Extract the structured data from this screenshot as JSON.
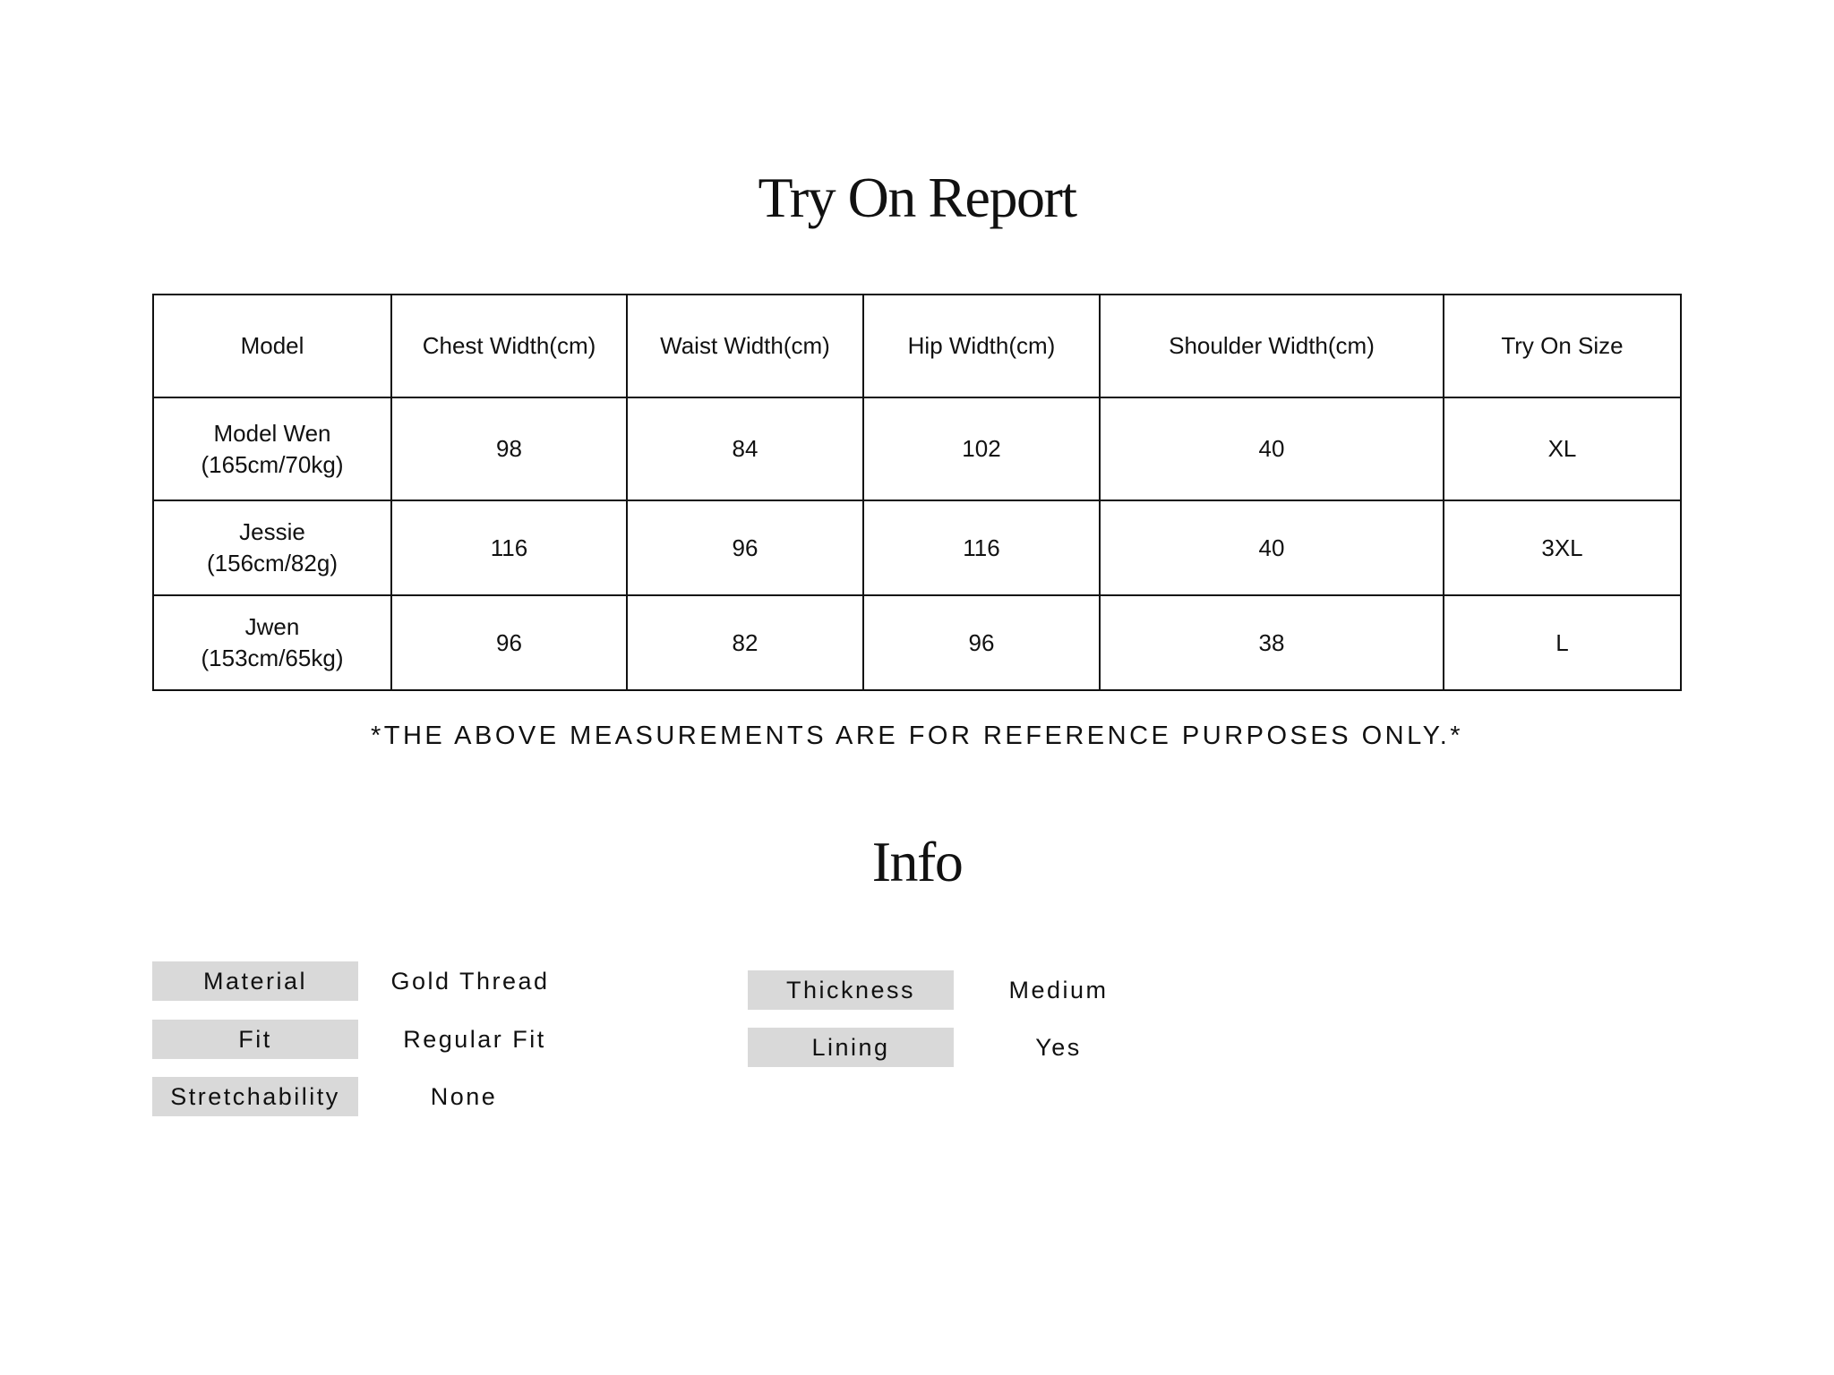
{
  "title": "Try On Report",
  "table": {
    "headers": [
      "Model",
      "Chest Width(cm)",
      "Waist Width(cm)",
      "Hip Width(cm)",
      "Shoulder Width(cm)",
      "Try On Size"
    ],
    "rows": [
      {
        "name": "Model Wen",
        "stats": "(165cm/70kg)",
        "chest": "98",
        "waist": "84",
        "hip": "102",
        "shoulder": "40",
        "size": "XL"
      },
      {
        "name": "Jessie",
        "stats": "(156cm/82g)",
        "chest": "116",
        "waist": "96",
        "hip": "116",
        "shoulder": "40",
        "size": "3XL"
      },
      {
        "name": "Jwen",
        "stats": "(153cm/65kg)",
        "chest": "96",
        "waist": "82",
        "hip": "96",
        "shoulder": "38",
        "size": "L"
      }
    ]
  },
  "note": "*THE ABOVE MEASUREMENTS ARE FOR REFERENCE PURPOSES ONLY.*",
  "info": {
    "title": "Info",
    "items": [
      {
        "label": "Material",
        "value": "Gold Thread"
      },
      {
        "label": "Fit",
        "value": "Regular Fit"
      },
      {
        "label": "Stretchability",
        "value": "None"
      },
      {
        "label": "Thickness",
        "value": "Medium"
      },
      {
        "label": "Lining",
        "value": "Yes"
      }
    ],
    "label_bg": "#d9d9d9"
  }
}
